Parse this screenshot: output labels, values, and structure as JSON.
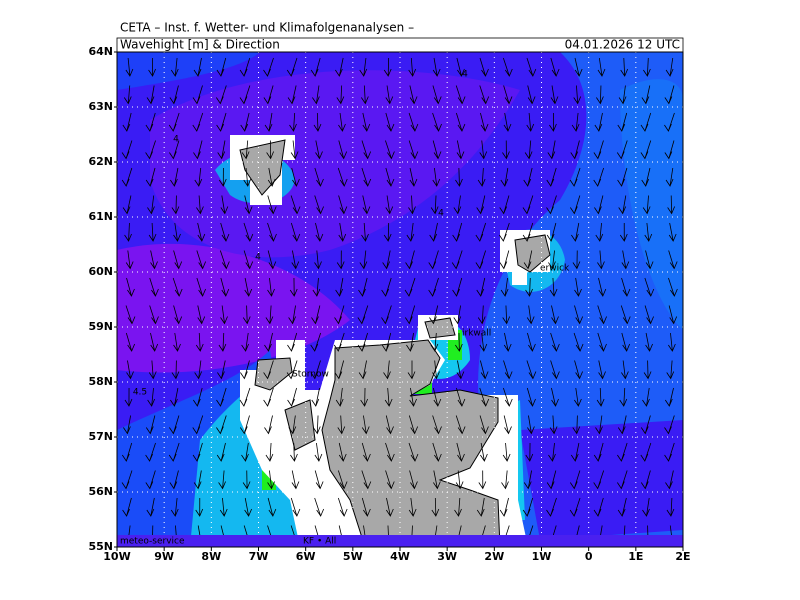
{
  "header": {
    "institute": "CETA – Inst. f. Wetter- und Klimafolgenanalysen –",
    "title": "Wavehight [m] & Direction",
    "date": "04.01.2026 12 UTC"
  },
  "axes": {
    "x_labels": [
      "10W",
      "9W",
      "8W",
      "7W",
      "6W",
      "5W",
      "4W",
      "3W",
      "2W",
      "1W",
      "0",
      "1E",
      "2E"
    ],
    "y_labels": [
      "55N",
      "56N",
      "57N",
      "58N",
      "59N",
      "60N",
      "61N",
      "62N",
      "63N",
      "64N"
    ]
  },
  "contour_labels": [
    "4",
    "4",
    "4",
    "4",
    "4.5"
  ],
  "places": [
    "erwick",
    "irkwall",
    "Stornow"
  ],
  "footer": {
    "left": "meteo-service",
    "right": "KF • All"
  }
}
